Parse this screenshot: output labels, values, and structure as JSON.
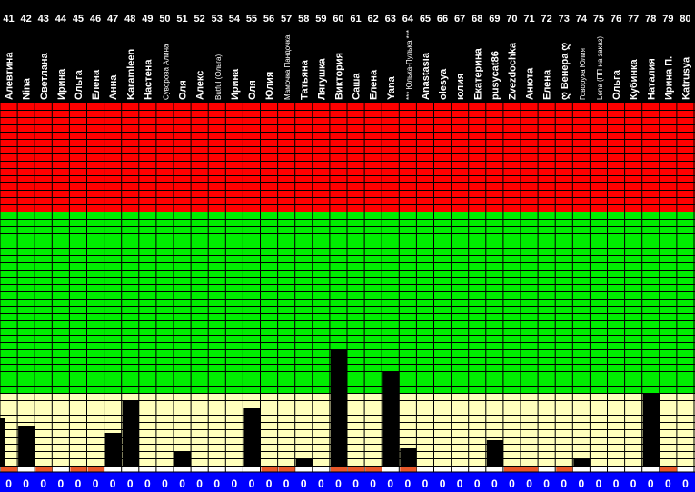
{
  "chart_data": {
    "type": "bar",
    "zones": [
      {
        "color": "#ff0000"
      },
      {
        "color": "#00ee00"
      },
      {
        "color": "#ffffbb"
      }
    ],
    "colors": {
      "header_bg": "#000000",
      "grid": "#000000",
      "bar": "#000000",
      "marker_orange": "#e8582a",
      "footer_bg": "#0000ff"
    },
    "categories": [
      {
        "num": "41",
        "name": "Алевтина",
        "value": 0,
        "partial": 6.5,
        "footer": "0",
        "marker": true
      },
      {
        "num": "42",
        "name": "Nina",
        "value": 5.5,
        "footer": "0",
        "marker": false
      },
      {
        "num": "43",
        "name": "Светлана",
        "value": 0,
        "footer": "0",
        "marker": true
      },
      {
        "num": "44",
        "name": "Ирина",
        "value": 0,
        "footer": "0",
        "marker": false
      },
      {
        "num": "45",
        "name": "Ольга",
        "value": 0,
        "footer": "0",
        "marker": true
      },
      {
        "num": "46",
        "name": "Елена",
        "value": 0,
        "footer": "0",
        "marker": true
      },
      {
        "num": "47",
        "name": "Анна",
        "value": 4.5,
        "footer": "0",
        "marker": false
      },
      {
        "num": "48",
        "name": "Karamleen",
        "value": 9,
        "footer": "0",
        "marker": false
      },
      {
        "num": "49",
        "name": "Настена",
        "value": 0,
        "footer": "0",
        "marker": false
      },
      {
        "num": "50",
        "name": "Суворова Алина",
        "value": 0,
        "footer": "0",
        "marker": false
      },
      {
        "num": "51",
        "name": "Оля",
        "value": 2,
        "footer": "0",
        "marker": false
      },
      {
        "num": "52",
        "name": "Алекс",
        "value": 0,
        "footer": "0",
        "marker": false
      },
      {
        "num": "53",
        "name": "Butful (Ольга)",
        "value": 0,
        "footer": "0",
        "marker": false
      },
      {
        "num": "54",
        "name": "Ирина",
        "value": 0,
        "footer": "0",
        "marker": false
      },
      {
        "num": "55",
        "name": "Оля",
        "value": 8,
        "footer": "0",
        "marker": false
      },
      {
        "num": "56",
        "name": "Юлия",
        "value": 0,
        "footer": "0",
        "marker": true
      },
      {
        "num": "57",
        "name": "Мамочка Пандочка",
        "value": 0,
        "footer": "0",
        "marker": true
      },
      {
        "num": "58",
        "name": "Татьяна",
        "value": 1,
        "footer": "0",
        "marker": false
      },
      {
        "num": "59",
        "name": "Лягушка",
        "value": 0,
        "footer": "0",
        "marker": false
      },
      {
        "num": "60",
        "name": "Виктория",
        "value": 16,
        "footer": "0",
        "marker": true
      },
      {
        "num": "61",
        "name": "Саша",
        "value": 0,
        "footer": "0",
        "marker": true
      },
      {
        "num": "62",
        "name": "Елена",
        "value": 0,
        "footer": "0",
        "marker": true
      },
      {
        "num": "63",
        "name": "Yana",
        "value": 13,
        "footer": "0",
        "marker": false
      },
      {
        "num": "64",
        "name": "*** Юлька-Пулька ***",
        "value": 2.5,
        "footer": "0",
        "marker": true
      },
      {
        "num": "65",
        "name": "Anastasia",
        "value": 0,
        "footer": "0",
        "marker": false
      },
      {
        "num": "66",
        "name": "olesya",
        "value": 0,
        "footer": "0",
        "marker": false
      },
      {
        "num": "67",
        "name": "юлия",
        "value": 0,
        "footer": "0",
        "marker": false
      },
      {
        "num": "68",
        "name": "Екатерина",
        "value": 0,
        "footer": "0",
        "marker": false
      },
      {
        "num": "69",
        "name": "pusycat86",
        "value": 3.5,
        "footer": "0",
        "marker": false
      },
      {
        "num": "70",
        "name": "Zvezdochka",
        "value": 0,
        "footer": "0",
        "marker": true
      },
      {
        "num": "71",
        "name": "Анюта",
        "value": 0,
        "footer": "0",
        "marker": true
      },
      {
        "num": "72",
        "name": "Елена",
        "value": 0,
        "footer": "0",
        "marker": false
      },
      {
        "num": "73",
        "name": "ღ Венера ღ",
        "value": 0,
        "footer": "0",
        "marker": true
      },
      {
        "num": "74",
        "name": "Говоруха Юлия",
        "value": 1,
        "footer": "0",
        "marker": false
      },
      {
        "num": "75",
        "name": "Lena (ПП на заказ)",
        "value": 0,
        "footer": "0",
        "marker": false
      },
      {
        "num": "76",
        "name": "Ольга",
        "value": 0,
        "footer": "0",
        "marker": false
      },
      {
        "num": "77",
        "name": "Кубинка",
        "value": 0,
        "footer": "0",
        "marker": false
      },
      {
        "num": "78",
        "name": "Наталия",
        "value": 10,
        "footer": "0",
        "marker": false
      },
      {
        "num": "79",
        "name": "Ирина П.",
        "value": 0,
        "footer": "0",
        "marker": true
      },
      {
        "num": "80",
        "name": "Katrusya",
        "value": 0,
        "footer": "0",
        "marker": false
      }
    ]
  }
}
